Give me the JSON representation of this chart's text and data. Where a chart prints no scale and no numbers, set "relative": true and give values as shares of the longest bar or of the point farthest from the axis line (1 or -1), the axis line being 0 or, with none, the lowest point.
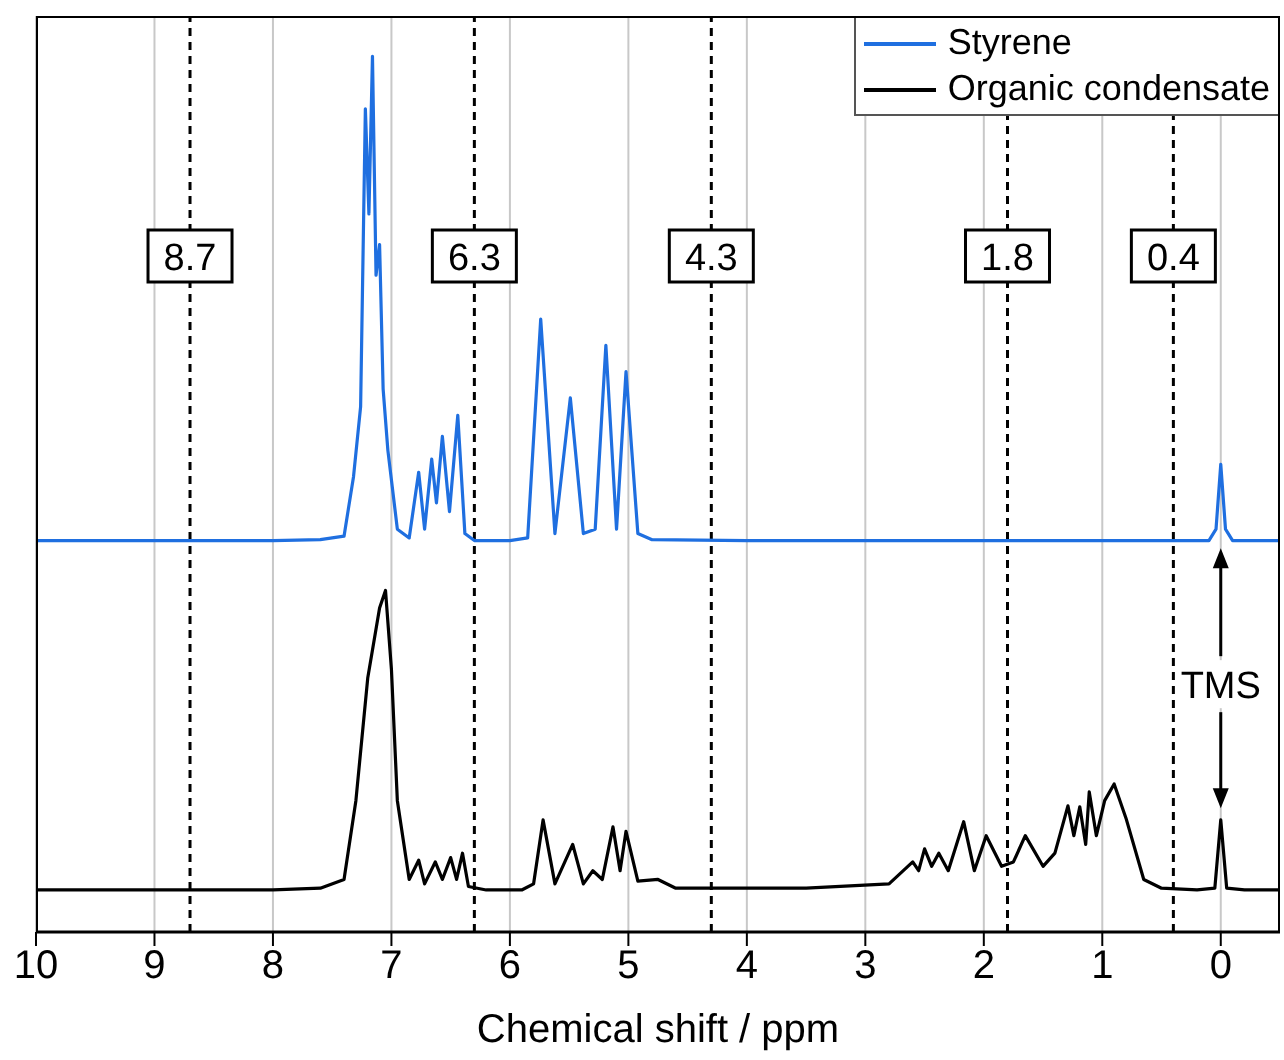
{
  "chart_data": {
    "type": "line",
    "relative": true,
    "xlabel": "Chemical shift / ppm",
    "xlim": [
      10,
      -0.5
    ],
    "xticks": [
      10,
      9,
      8,
      7,
      6,
      5,
      4,
      3,
      2,
      1,
      0
    ],
    "grid": "x",
    "legend": "top right",
    "line_style": "solid",
    "marker": "none",
    "series": [
      {
        "name": "Styrene",
        "color": "#1f6fe0",
        "x": [
          10,
          8,
          7.6,
          7.4,
          7.32,
          7.26,
          7.22,
          7.19,
          7.16,
          7.13,
          7.1,
          7.07,
          7.03,
          6.95,
          6.85,
          6.77,
          6.72,
          6.66,
          6.62,
          6.57,
          6.51,
          6.44,
          6.38,
          6.3,
          6.0,
          5.85,
          5.74,
          5.62,
          5.49,
          5.38,
          5.28,
          5.19,
          5.1,
          5.02,
          4.92,
          4.8,
          4,
          2,
          1,
          0.1,
          0.04,
          0,
          -0.04,
          -0.1,
          -0.5
        ],
        "values": [
          0.447,
          0.447,
          0.448,
          0.452,
          0.52,
          0.6,
          0.94,
          0.82,
          1.0,
          0.75,
          0.785,
          0.62,
          0.55,
          0.46,
          0.45,
          0.525,
          0.46,
          0.54,
          0.49,
          0.566,
          0.48,
          0.59,
          0.455,
          0.447,
          0.447,
          0.45,
          0.7,
          0.455,
          0.61,
          0.455,
          0.46,
          0.67,
          0.46,
          0.64,
          0.455,
          0.448,
          0.447,
          0.447,
          0.447,
          0.447,
          0.46,
          0.534,
          0.46,
          0.447,
          0.447
        ]
      },
      {
        "name": "Organic condensate",
        "color": "#000000",
        "x": [
          10,
          8,
          7.6,
          7.4,
          7.3,
          7.2,
          7.15,
          7.1,
          7.05,
          7.0,
          6.95,
          6.85,
          6.77,
          6.72,
          6.63,
          6.57,
          6.5,
          6.45,
          6.4,
          6.35,
          6.2,
          5.9,
          5.8,
          5.72,
          5.62,
          5.47,
          5.38,
          5.3,
          5.22,
          5.13,
          5.07,
          5.02,
          4.92,
          4.75,
          4.6,
          3.5,
          2.8,
          2.6,
          2.55,
          2.5,
          2.44,
          2.38,
          2.3,
          2.17,
          2.08,
          1.98,
          1.85,
          1.75,
          1.65,
          1.5,
          1.4,
          1.29,
          1.24,
          1.19,
          1.14,
          1.11,
          1.05,
          0.98,
          0.9,
          0.8,
          0.65,
          0.5,
          0.2,
          0.05,
          0,
          -0.05,
          -0.2,
          -0.5
        ],
        "values": [
          0.048,
          0.048,
          0.05,
          0.06,
          0.15,
          0.29,
          0.33,
          0.37,
          0.39,
          0.3,
          0.15,
          0.06,
          0.082,
          0.055,
          0.08,
          0.06,
          0.085,
          0.06,
          0.09,
          0.052,
          0.048,
          0.048,
          0.055,
          0.128,
          0.055,
          0.1,
          0.055,
          0.07,
          0.06,
          0.12,
          0.07,
          0.115,
          0.058,
          0.06,
          0.05,
          0.05,
          0.055,
          0.08,
          0.07,
          0.095,
          0.075,
          0.09,
          0.07,
          0.126,
          0.07,
          0.11,
          0.075,
          0.08,
          0.11,
          0.075,
          0.09,
          0.144,
          0.11,
          0.143,
          0.1,
          0.16,
          0.11,
          0.15,
          0.169,
          0.13,
          0.06,
          0.05,
          0.048,
          0.05,
          0.128,
          0.05,
          0.048,
          0.048
        ]
      }
    ],
    "ref_lines": [
      {
        "axis": "x",
        "value": 8.7,
        "label": "8.7",
        "line_style": "dashed",
        "color": "#000000"
      },
      {
        "axis": "x",
        "value": 6.3,
        "label": "6.3",
        "line_style": "dashed",
        "color": "#000000"
      },
      {
        "axis": "x",
        "value": 4.3,
        "label": "4.3",
        "line_style": "dashed",
        "color": "#000000"
      },
      {
        "axis": "x",
        "value": 1.8,
        "label": "1.8",
        "line_style": "dashed",
        "color": "#000000"
      },
      {
        "axis": "x",
        "value": 0.4,
        "label": "0.4",
        "line_style": "dashed",
        "color": "#000000"
      }
    ],
    "annotations": [
      {
        "text": "TMS",
        "x": 0,
        "y": 0.283
      }
    ]
  }
}
